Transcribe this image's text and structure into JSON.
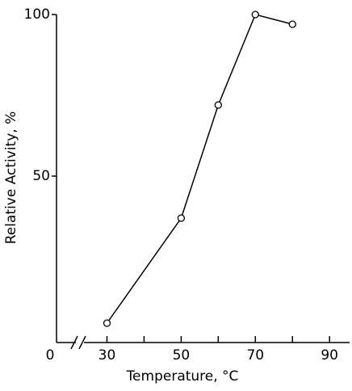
{
  "chart_data": {
    "type": "line",
    "x_label": "Temperature, °C",
    "y_label": "Relative Activity, %",
    "x": [
      30,
      50,
      60,
      70,
      80
    ],
    "series": [
      {
        "color": "#000000",
        "values": [
          4.5,
          37,
          72,
          100,
          97
        ]
      }
    ],
    "x_origin_label": 0,
    "xlim": [
      16.4,
      95.4
    ],
    "xticks": [
      30,
      50,
      70,
      90
    ],
    "xminor_ticks": [
      40,
      60,
      80
    ],
    "ylim": [
      -1.5,
      100
    ],
    "yticks": [
      50,
      100
    ],
    "axis_break": true
  }
}
